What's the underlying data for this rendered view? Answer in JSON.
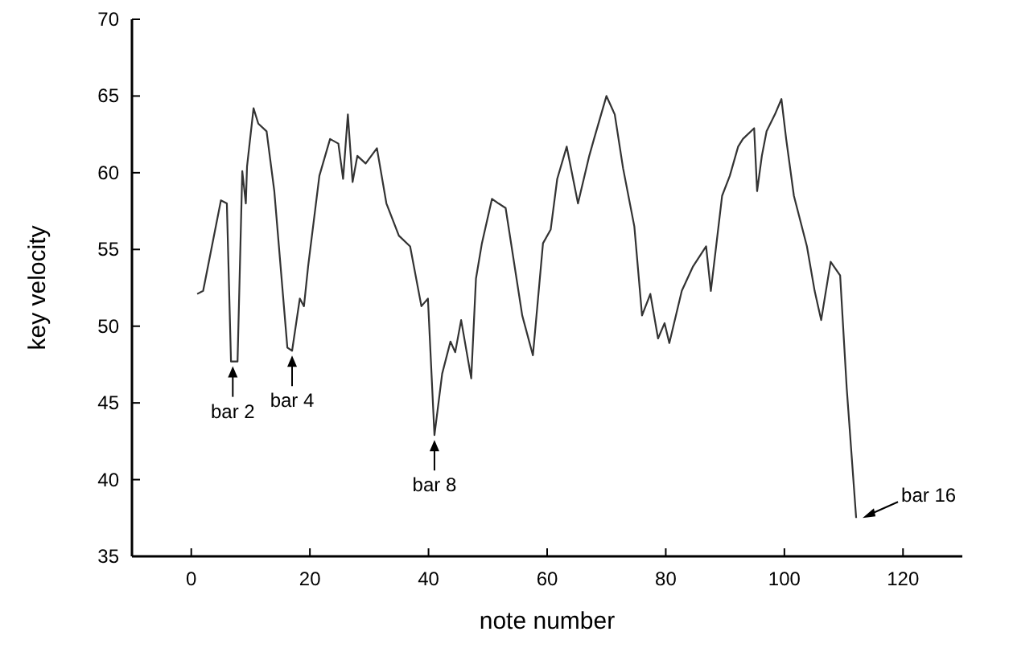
{
  "chart_data": {
    "type": "line",
    "xlabel": "note number",
    "ylabel": "key velocity",
    "xlim": [
      -10,
      130
    ],
    "xticks": [
      0,
      20,
      40,
      60,
      80,
      100,
      120
    ],
    "ylim": [
      35,
      70
    ],
    "yticks": [
      35,
      40,
      45,
      50,
      55,
      60,
      65,
      70
    ],
    "grid": false,
    "marker": "none",
    "line_style": "solid",
    "series": [
      {
        "color": "#333333",
        "x": [
          1,
          2,
          5,
          6,
          6.7,
          7.8,
          8.6,
          9.2,
          9.4,
          10.5,
          11.3,
          12.7,
          14,
          16.2,
          17,
          18.3,
          19,
          19.7,
          21.6,
          23.4,
          24.8,
          25.6,
          26.4,
          27.2,
          28,
          29.4,
          31.3,
          32.9,
          35,
          36.9,
          38.8,
          39.9,
          41,
          42.3,
          43.7,
          44.5,
          45.5,
          47.2,
          48,
          49,
          50.7,
          51.8,
          53,
          55.8,
          57.6,
          59.3,
          60.6,
          61.7,
          63.3,
          65.2,
          67.1,
          67.9,
          70,
          71.4,
          72.8,
          74.7,
          76,
          77.4,
          78.7,
          79.8,
          80.6,
          82.7,
          84.6,
          86.8,
          87.6,
          89.5,
          90.8,
          92.2,
          93,
          94.9,
          95.4,
          96.2,
          97,
          98.4,
          99.5,
          100.3,
          101.6,
          103.8,
          105.1,
          106.2,
          107.8,
          109.4,
          110.5,
          112.1
        ],
        "values": [
          52.1,
          52.3,
          58.2,
          58,
          47.7,
          47.7,
          60.1,
          58,
          60.4,
          64.2,
          63.2,
          62.7,
          58.8,
          48.6,
          48.4,
          51.8,
          51.3,
          53.9,
          59.8,
          62.2,
          61.9,
          59.6,
          63.8,
          59.4,
          61.1,
          60.6,
          61.6,
          58,
          55.9,
          55.2,
          51.3,
          51.8,
          42.9,
          46.9,
          49,
          48.3,
          50.4,
          46.6,
          53.1,
          55.4,
          58.3,
          58,
          57.7,
          50.7,
          48.1,
          55.4,
          56.3,
          59.6,
          61.7,
          58,
          61.1,
          62.2,
          65,
          63.8,
          60.3,
          56.5,
          50.7,
          52.1,
          49.2,
          50.2,
          48.9,
          52.3,
          53.9,
          55.2,
          52.3,
          58.5,
          59.8,
          61.7,
          62.2,
          62.9,
          58.8,
          61.1,
          62.7,
          63.8,
          64.8,
          62.2,
          58.5,
          55.2,
          52.3,
          50.4,
          54.2,
          53.3,
          46,
          37.5
        ]
      }
    ],
    "annotations": [
      {
        "text": "bar 2",
        "x": 7,
        "y": 47.7
      },
      {
        "text": "bar 4",
        "x": 17,
        "y": 48.4
      },
      {
        "text": "bar 8",
        "x": 41,
        "y": 42.9
      },
      {
        "text": "bar 16",
        "x": 112.1,
        "y": 37.5
      }
    ]
  }
}
